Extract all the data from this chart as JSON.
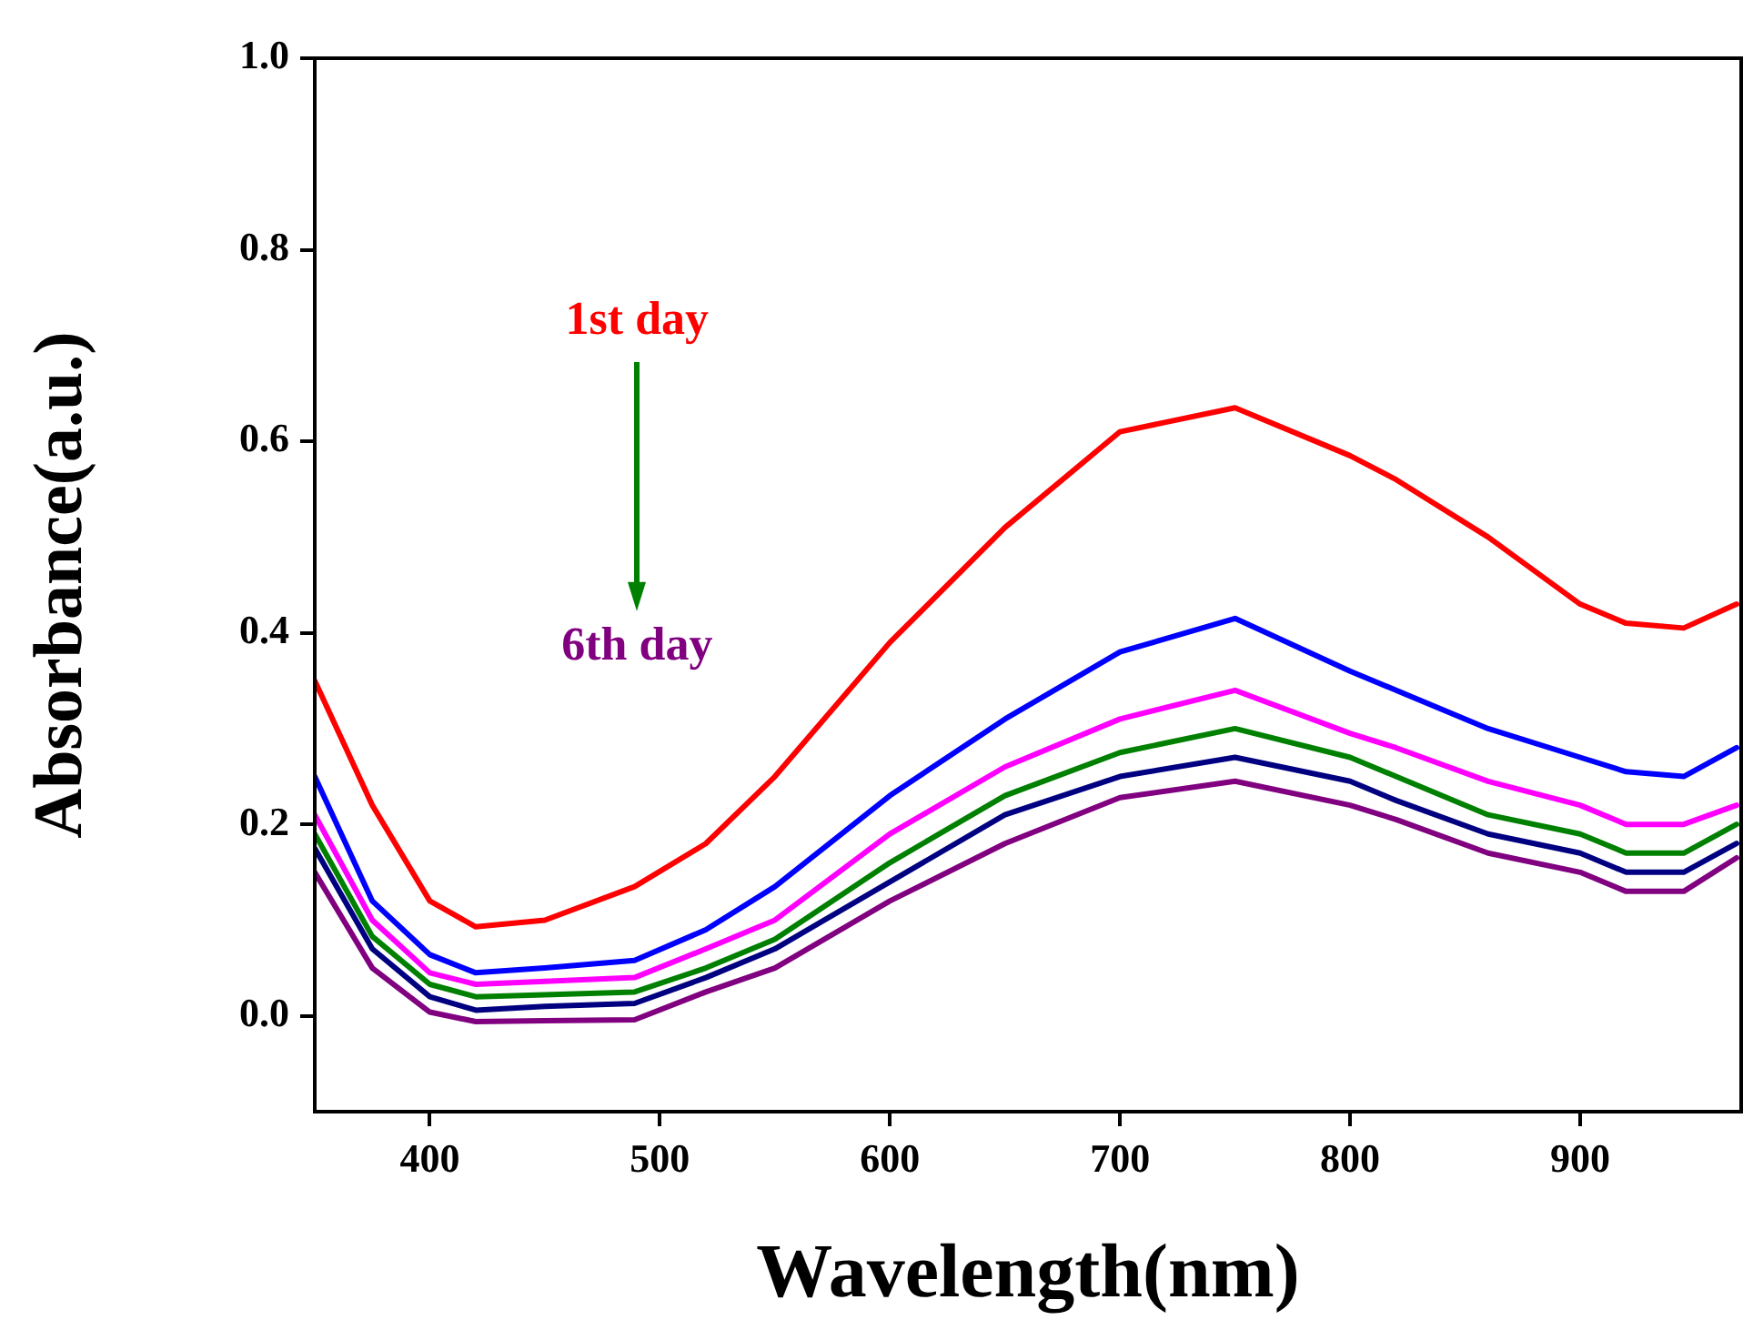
{
  "chart_data": {
    "type": "line",
    "xlabel": "Wavelength(nm)",
    "ylabel": "Absorbance(a.u.)",
    "x": [
      350,
      375,
      400,
      420,
      450,
      489,
      520,
      550,
      600,
      650,
      700,
      750,
      800,
      820,
      860,
      900,
      920,
      945,
      968
    ],
    "series": [
      {
        "color": "#ff0000",
        "values": [
          0.35,
          0.22,
          0.12,
          0.093,
          0.1,
          0.135,
          0.18,
          0.25,
          0.39,
          0.51,
          0.61,
          0.635,
          0.585,
          0.56,
          0.5,
          0.43,
          0.41,
          0.405,
          0.43
        ]
      },
      {
        "color": "#0000ff",
        "values": [
          0.25,
          0.12,
          0.064,
          0.045,
          0.05,
          0.058,
          0.09,
          0.135,
          0.23,
          0.31,
          0.38,
          0.415,
          0.36,
          0.34,
          0.3,
          0.27,
          0.255,
          0.25,
          0.28
        ]
      },
      {
        "color": "#ff00ff",
        "values": [
          0.21,
          0.1,
          0.045,
          0.033,
          0.036,
          0.04,
          0.07,
          0.1,
          0.19,
          0.26,
          0.31,
          0.34,
          0.295,
          0.28,
          0.245,
          0.22,
          0.2,
          0.2,
          0.22
        ]
      },
      {
        "color": "#008000",
        "values": [
          0.19,
          0.083,
          0.033,
          0.02,
          0.022,
          0.025,
          0.05,
          0.08,
          0.16,
          0.23,
          0.275,
          0.3,
          0.27,
          0.25,
          0.21,
          0.19,
          0.17,
          0.17,
          0.2
        ]
      },
      {
        "color": "#000080",
        "values": [
          0.175,
          0.07,
          0.02,
          0.006,
          0.01,
          0.013,
          0.04,
          0.07,
          0.14,
          0.21,
          0.25,
          0.27,
          0.245,
          0.225,
          0.19,
          0.17,
          0.15,
          0.15,
          0.18
        ]
      },
      {
        "color": "#800080",
        "values": [
          0.15,
          0.05,
          0.004,
          -0.006,
          -0.005,
          -0.004,
          0.025,
          0.05,
          0.12,
          0.18,
          0.228,
          0.245,
          0.22,
          0.205,
          0.17,
          0.15,
          0.13,
          0.13,
          0.165
        ]
      }
    ],
    "annotations": [
      "1st day",
      "6th day"
    ],
    "xlim": [
      350,
      970
    ],
    "xticks": [
      400,
      500,
      600,
      700,
      800,
      900
    ],
    "ylim": [
      -0.1,
      1.0
    ],
    "yticks": [
      {
        "value": 0,
        "label": "0.0"
      },
      {
        "value": 0.2,
        "label": "0.2"
      },
      {
        "value": 0.4,
        "label": "0.4"
      },
      {
        "value": 0.6,
        "label": "0.6"
      },
      {
        "value": 0.8,
        "label": "0.8"
      },
      {
        "value": 1,
        "label": "1.0"
      }
    ],
    "grid": false,
    "legend": false,
    "marker": "none",
    "line_style": "solid"
  }
}
